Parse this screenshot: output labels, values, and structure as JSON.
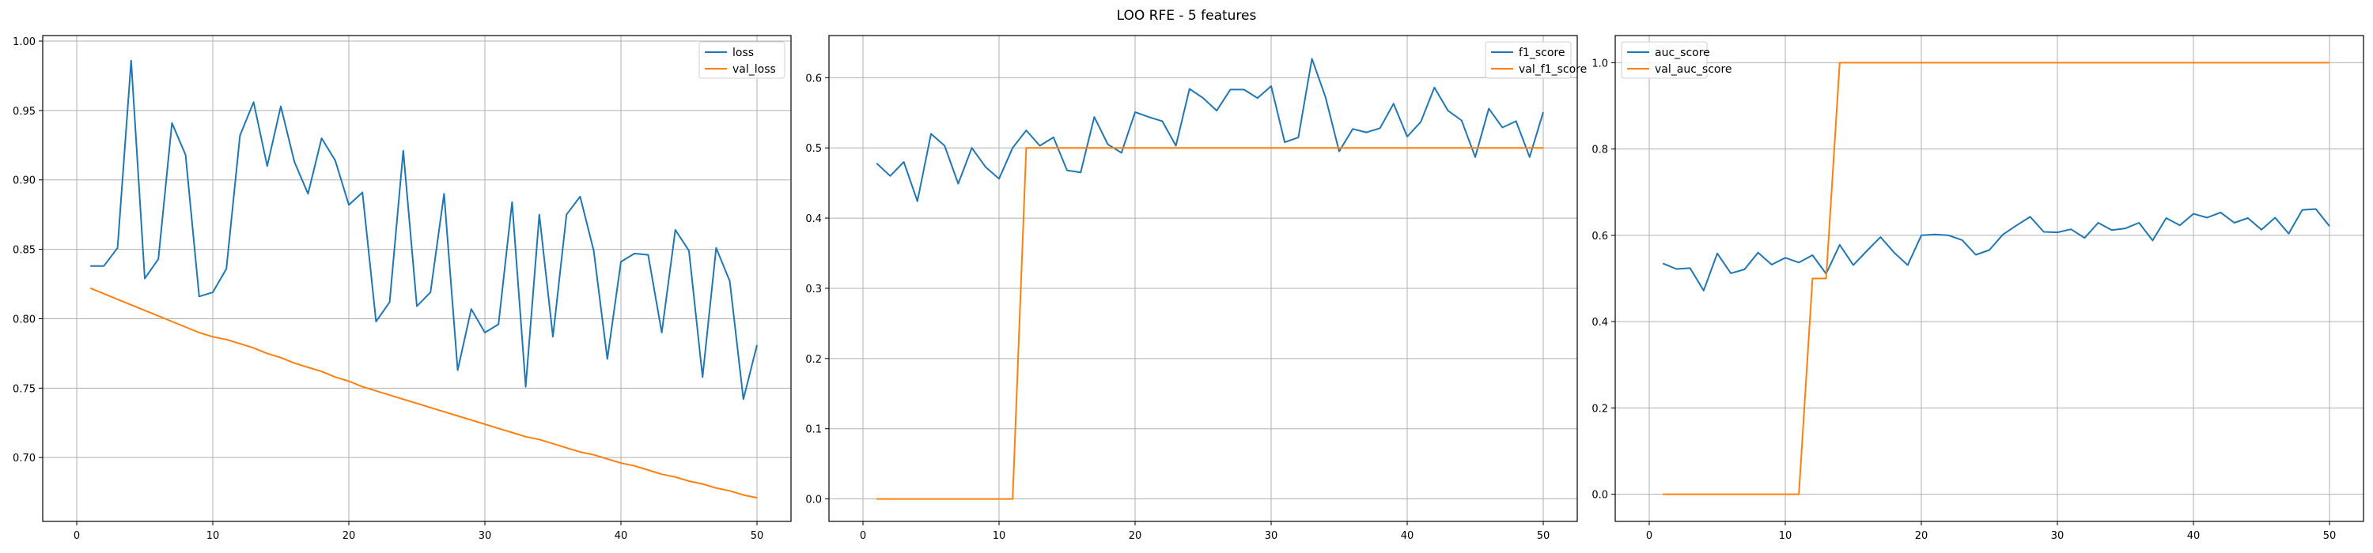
{
  "figure": {
    "title": "LOO RFE - 5 features"
  },
  "colors": {
    "blue": "#1f77b4",
    "orange": "#ff7f0e",
    "grid": "#b0b0b0",
    "axes": "#000000"
  },
  "chart_data": [
    {
      "type": "line",
      "title": "",
      "xlabel": "",
      "ylabel": "",
      "xlim": [
        -2.5,
        52.5
      ],
      "ylim": [
        0.654,
        1.004
      ],
      "xticks": [
        0,
        10,
        20,
        30,
        40,
        50
      ],
      "yticks": [
        0.7,
        0.75,
        0.8,
        0.85,
        0.9,
        0.95,
        1.0
      ],
      "ytick_format": 2,
      "grid": true,
      "legend": "top-right",
      "series": [
        {
          "name": "loss",
          "color": "#1f77b4",
          "x": [
            1,
            2,
            3,
            4,
            5,
            6,
            7,
            8,
            9,
            10,
            11,
            12,
            13,
            14,
            15,
            16,
            17,
            18,
            19,
            20,
            21,
            22,
            23,
            24,
            25,
            26,
            27,
            28,
            29,
            30,
            31,
            32,
            33,
            34,
            35,
            36,
            37,
            38,
            39,
            40,
            41,
            42,
            43,
            44,
            45,
            46,
            47,
            48,
            49,
            50
          ],
          "values": [
            0.838,
            0.838,
            0.851,
            0.986,
            0.829,
            0.843,
            0.941,
            0.918,
            0.816,
            0.819,
            0.836,
            0.932,
            0.956,
            0.91,
            0.953,
            0.913,
            0.89,
            0.93,
            0.914,
            0.882,
            0.891,
            0.798,
            0.812,
            0.921,
            0.809,
            0.819,
            0.89,
            0.763,
            0.807,
            0.79,
            0.796,
            0.884,
            0.751,
            0.875,
            0.787,
            0.875,
            0.888,
            0.849,
            0.771,
            0.841,
            0.847,
            0.846,
            0.79,
            0.864,
            0.849,
            0.758,
            0.851,
            0.827,
            0.742,
            0.781
          ]
        },
        {
          "name": "val_loss",
          "color": "#ff7f0e",
          "x": [
            1,
            2,
            3,
            4,
            5,
            6,
            7,
            8,
            9,
            10,
            11,
            12,
            13,
            14,
            15,
            16,
            17,
            18,
            19,
            20,
            21,
            22,
            23,
            24,
            25,
            26,
            27,
            28,
            29,
            30,
            31,
            32,
            33,
            34,
            35,
            36,
            37,
            38,
            39,
            40,
            41,
            42,
            43,
            44,
            45,
            46,
            47,
            48,
            49,
            50
          ],
          "values": [
            0.822,
            0.818,
            0.814,
            0.81,
            0.806,
            0.802,
            0.798,
            0.794,
            0.79,
            0.787,
            0.785,
            0.782,
            0.779,
            0.775,
            0.772,
            0.768,
            0.765,
            0.762,
            0.758,
            0.755,
            0.751,
            0.748,
            0.745,
            0.742,
            0.739,
            0.736,
            0.733,
            0.73,
            0.727,
            0.724,
            0.721,
            0.718,
            0.715,
            0.713,
            0.71,
            0.707,
            0.704,
            0.702,
            0.699,
            0.696,
            0.694,
            0.691,
            0.688,
            0.686,
            0.683,
            0.681,
            0.678,
            0.676,
            0.673,
            0.671
          ]
        }
      ]
    },
    {
      "type": "line",
      "title": "",
      "xlabel": "",
      "ylabel": "",
      "xlim": [
        -2.5,
        52.5
      ],
      "ylim": [
        -0.032,
        0.66
      ],
      "xticks": [
        0,
        10,
        20,
        30,
        40,
        50
      ],
      "yticks": [
        0.0,
        0.1,
        0.2,
        0.3,
        0.4,
        0.5,
        0.6
      ],
      "ytick_format": 1,
      "grid": true,
      "legend": "top-right",
      "series": [
        {
          "name": "f1_score",
          "color": "#1f77b4",
          "x": [
            1,
            2,
            3,
            4,
            5,
            6,
            7,
            8,
            9,
            10,
            11,
            12,
            13,
            14,
            15,
            16,
            17,
            18,
            19,
            20,
            21,
            22,
            23,
            24,
            25,
            26,
            27,
            28,
            29,
            30,
            31,
            32,
            33,
            34,
            35,
            36,
            37,
            38,
            39,
            40,
            41,
            42,
            43,
            44,
            45,
            46,
            47,
            48,
            49,
            50
          ],
          "values": [
            0.478,
            0.46,
            0.48,
            0.424,
            0.52,
            0.503,
            0.449,
            0.5,
            0.473,
            0.456,
            0.5,
            0.525,
            0.503,
            0.515,
            0.468,
            0.465,
            0.544,
            0.505,
            0.493,
            0.551,
            0.544,
            0.538,
            0.503,
            0.584,
            0.571,
            0.553,
            0.583,
            0.583,
            0.571,
            0.588,
            0.508,
            0.515,
            0.627,
            0.572,
            0.495,
            0.527,
            0.522,
            0.528,
            0.563,
            0.516,
            0.537,
            0.586,
            0.553,
            0.539,
            0.487,
            0.556,
            0.529,
            0.538,
            0.487,
            0.551
          ]
        },
        {
          "name": "val_f1_score",
          "color": "#ff7f0e",
          "x": [
            1,
            2,
            3,
            4,
            5,
            6,
            7,
            8,
            9,
            10,
            11,
            12,
            13,
            14,
            15,
            16,
            17,
            18,
            19,
            20,
            21,
            22,
            23,
            24,
            25,
            26,
            27,
            28,
            29,
            30,
            31,
            32,
            33,
            34,
            35,
            36,
            37,
            38,
            39,
            40,
            41,
            42,
            43,
            44,
            45,
            46,
            47,
            48,
            49,
            50
          ],
          "values": [
            0,
            0,
            0,
            0,
            0,
            0,
            0,
            0,
            0,
            0,
            0,
            0.5,
            0.5,
            0.5,
            0.5,
            0.5,
            0.5,
            0.5,
            0.5,
            0.5,
            0.5,
            0.5,
            0.5,
            0.5,
            0.5,
            0.5,
            0.5,
            0.5,
            0.5,
            0.5,
            0.5,
            0.5,
            0.5,
            0.5,
            0.5,
            0.5,
            0.5,
            0.5,
            0.5,
            0.5,
            0.5,
            0.5,
            0.5,
            0.5,
            0.5,
            0.5,
            0.5,
            0.5,
            0.5,
            0.5
          ]
        }
      ]
    },
    {
      "type": "line",
      "title": "",
      "xlabel": "",
      "ylabel": "",
      "xlim": [
        -2.5,
        52.5
      ],
      "ylim": [
        -0.063,
        1.063
      ],
      "xticks": [
        0,
        10,
        20,
        30,
        40,
        50
      ],
      "yticks": [
        0.0,
        0.2,
        0.4,
        0.6,
        0.8,
        1.0
      ],
      "ytick_format": 1,
      "grid": true,
      "legend": "top-left",
      "series": [
        {
          "name": "auc_score",
          "color": "#1f77b4",
          "x": [
            1,
            2,
            3,
            4,
            5,
            6,
            7,
            8,
            9,
            10,
            11,
            12,
            13,
            14,
            15,
            16,
            17,
            18,
            19,
            20,
            21,
            22,
            23,
            24,
            25,
            26,
            27,
            28,
            29,
            30,
            31,
            32,
            33,
            34,
            35,
            36,
            37,
            38,
            39,
            40,
            41,
            42,
            43,
            44,
            45,
            46,
            47,
            48,
            49,
            50
          ],
          "values": [
            0.535,
            0.522,
            0.524,
            0.472,
            0.558,
            0.512,
            0.521,
            0.56,
            0.532,
            0.548,
            0.537,
            0.554,
            0.511,
            0.578,
            0.531,
            0.564,
            0.596,
            0.56,
            0.531,
            0.6,
            0.602,
            0.6,
            0.589,
            0.555,
            0.566,
            0.602,
            0.623,
            0.643,
            0.608,
            0.607,
            0.614,
            0.594,
            0.629,
            0.612,
            0.616,
            0.629,
            0.588,
            0.64,
            0.623,
            0.65,
            0.641,
            0.653,
            0.629,
            0.64,
            0.613,
            0.641,
            0.604,
            0.659,
            0.661,
            0.621
          ]
        },
        {
          "name": "val_auc_score",
          "color": "#ff7f0e",
          "x": [
            1,
            2,
            3,
            4,
            5,
            6,
            7,
            8,
            9,
            10,
            11,
            12,
            13,
            14,
            15,
            16,
            17,
            18,
            19,
            20,
            21,
            22,
            23,
            24,
            25,
            26,
            27,
            28,
            29,
            30,
            31,
            32,
            33,
            34,
            35,
            36,
            37,
            38,
            39,
            40,
            41,
            42,
            43,
            44,
            45,
            46,
            47,
            48,
            49,
            50
          ],
          "values": [
            0,
            0,
            0,
            0,
            0,
            0,
            0,
            0,
            0,
            0,
            0,
            0.5,
            0.5,
            1.0,
            1.0,
            1.0,
            1.0,
            1.0,
            1.0,
            1.0,
            1.0,
            1.0,
            1.0,
            1.0,
            1.0,
            1.0,
            1.0,
            1.0,
            1.0,
            1.0,
            1.0,
            1.0,
            1.0,
            1.0,
            1.0,
            1.0,
            1.0,
            1.0,
            1.0,
            1.0,
            1.0,
            1.0,
            1.0,
            1.0,
            1.0,
            1.0,
            1.0,
            1.0,
            1.0,
            1.0
          ]
        }
      ]
    }
  ]
}
